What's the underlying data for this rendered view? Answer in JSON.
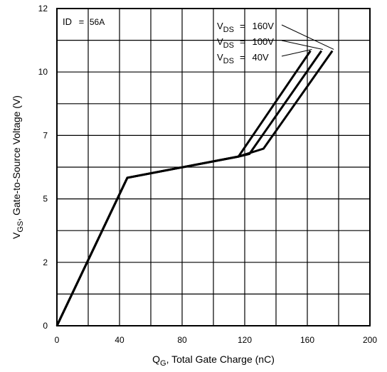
{
  "chart_data": {
    "type": "line",
    "xlim": [
      0,
      200
    ],
    "ylim": [
      0,
      12
    ],
    "x_ticks": [
      "0",
      "40",
      "80",
      "120",
      "160",
      "200"
    ],
    "y_ticks": [
      "0",
      "2",
      "5",
      "7",
      "10",
      "12"
    ],
    "grid": true,
    "xlabel": {
      "main": "Q",
      "sub": "G",
      "rest": ", Total Gate Charge (nC)"
    },
    "ylabel": {
      "main": "V",
      "sub": "GS",
      "rest": ", Gate-to-Source Voltage (V)"
    },
    "condition": {
      "name": "ID",
      "value": "56A"
    },
    "series": [
      {
        "name": "VDS = 40V",
        "label": {
          "main": "V",
          "sub": "DS",
          "rest": "40V"
        },
        "points": [
          [
            0,
            0
          ],
          [
            45,
            5.6
          ],
          [
            116,
            6.4
          ],
          [
            162,
            10.4
          ]
        ]
      },
      {
        "name": "VDS = 100V",
        "label": {
          "main": "V",
          "sub": "DS",
          "rest": "100V"
        },
        "points": [
          [
            0,
            0
          ],
          [
            45,
            5.6
          ],
          [
            116,
            6.4
          ],
          [
            123,
            6.5
          ],
          [
            169,
            10.4
          ]
        ]
      },
      {
        "name": "VDS = 160V",
        "label": {
          "main": "V",
          "sub": "DS",
          "rest": "160V"
        },
        "points": [
          [
            0,
            0
          ],
          [
            45,
            5.6
          ],
          [
            116,
            6.4
          ],
          [
            132,
            6.7
          ],
          [
            176,
            10.4
          ]
        ]
      }
    ]
  }
}
